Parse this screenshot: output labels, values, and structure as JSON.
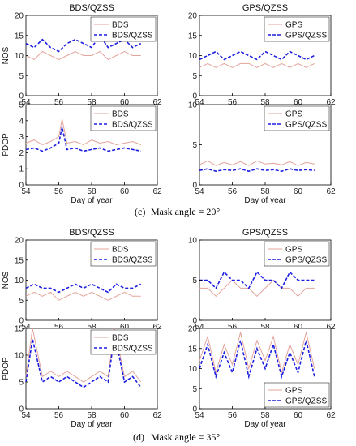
{
  "figure": {
    "caption_c_label": "(c)",
    "caption_c_text": "Mask angle = 20°",
    "caption_d_label": "(d)",
    "caption_d_text": "Mask angle = 35°"
  },
  "colors": {
    "single": "#e3a49b",
    "combined": "#1d1fe0"
  },
  "chart_data": [
    {
      "id": "c-nos-bds",
      "type": "line",
      "title": "BDS/QZSS",
      "xlabel": "",
      "ylabel": "NOS",
      "xlim": [
        54,
        62
      ],
      "ylim": [
        0,
        20
      ],
      "xticks": [
        54,
        56,
        58,
        60,
        62
      ],
      "yticks": [
        0,
        5,
        10,
        15,
        20
      ],
      "legend": [
        "BDS",
        "BDS/QZSS"
      ],
      "legend_position": "top-right",
      "series": [
        {
          "name": "BDS",
          "style": "single",
          "x": [
            54.0,
            54.5,
            55.0,
            55.5,
            56.0,
            56.5,
            57.0,
            57.5,
            58.0,
            58.5,
            59.0,
            59.5,
            60.0,
            60.5,
            61.0
          ],
          "y": [
            10,
            9,
            11,
            10,
            9,
            10,
            11,
            10,
            10,
            11,
            9,
            10,
            11,
            10,
            10
          ]
        },
        {
          "name": "BDS/QZSS",
          "style": "combined",
          "x": [
            54.0,
            54.5,
            55.0,
            55.5,
            56.0,
            56.5,
            57.0,
            57.5,
            58.0,
            58.5,
            59.0,
            59.5,
            60.0,
            60.5,
            61.0
          ],
          "y": [
            13,
            12,
            14,
            12,
            11,
            13,
            14,
            13,
            12,
            15,
            12,
            13,
            14,
            12,
            13
          ]
        }
      ]
    },
    {
      "id": "c-nos-gps",
      "type": "line",
      "title": "GPS/QZSS",
      "xlabel": "",
      "ylabel": "",
      "xlim": [
        54,
        62
      ],
      "ylim": [
        0,
        20
      ],
      "xticks": [
        54,
        56,
        58,
        60,
        62
      ],
      "yticks": [
        0,
        5,
        10,
        15,
        20
      ],
      "legend": [
        "GPS",
        "GPS/QZSS"
      ],
      "legend_position": "top-right",
      "series": [
        {
          "name": "GPS",
          "style": "single",
          "x": [
            54.0,
            54.5,
            55.0,
            55.5,
            56.0,
            56.5,
            57.0,
            57.5,
            58.0,
            58.5,
            59.0,
            59.5,
            60.0,
            60.5,
            61.0
          ],
          "y": [
            7,
            8,
            7,
            8,
            7,
            8,
            8,
            7,
            8,
            7,
            8,
            7,
            8,
            7,
            8
          ]
        },
        {
          "name": "GPS/QZSS",
          "style": "combined",
          "x": [
            54.0,
            54.5,
            55.0,
            55.5,
            56.0,
            56.5,
            57.0,
            57.5,
            58.0,
            58.5,
            59.0,
            59.5,
            60.0,
            60.5,
            61.0
          ],
          "y": [
            9,
            10,
            11,
            9,
            10,
            11,
            10,
            9,
            11,
            10,
            9,
            11,
            10,
            9,
            10
          ]
        }
      ]
    },
    {
      "id": "c-pdop-bds",
      "type": "line",
      "title": "",
      "xlabel": "Day of year",
      "ylabel": "PDOP",
      "xlim": [
        54,
        62
      ],
      "ylim": [
        0,
        5
      ],
      "xticks": [
        54,
        56,
        58,
        60,
        62
      ],
      "yticks": [
        0,
        1,
        2,
        3,
        4,
        5
      ],
      "legend": [
        "BDS",
        "BDS/QZSS"
      ],
      "legend_position": "top-right",
      "series": [
        {
          "name": "BDS",
          "style": "single",
          "x": [
            54.0,
            54.5,
            55.0,
            55.5,
            56.0,
            56.2,
            56.5,
            57.0,
            57.5,
            58.0,
            58.5,
            59.0,
            59.5,
            60.0,
            60.5,
            61.0
          ],
          "y": [
            2.6,
            2.8,
            2.5,
            2.7,
            3.0,
            4.1,
            2.6,
            2.7,
            2.5,
            2.8,
            2.6,
            2.7,
            2.5,
            2.6,
            2.7,
            2.5
          ]
        },
        {
          "name": "BDS/QZSS",
          "style": "combined",
          "x": [
            54.0,
            54.5,
            55.0,
            55.5,
            56.0,
            56.2,
            56.5,
            57.0,
            57.5,
            58.0,
            58.5,
            59.0,
            59.5,
            60.0,
            60.5,
            61.0
          ],
          "y": [
            2.2,
            2.3,
            2.1,
            2.3,
            2.6,
            3.6,
            2.2,
            2.3,
            2.1,
            2.2,
            2.3,
            2.1,
            2.2,
            2.3,
            2.2,
            2.1
          ]
        }
      ]
    },
    {
      "id": "c-pdop-gps",
      "type": "line",
      "title": "",
      "xlabel": "Day of year",
      "ylabel": "",
      "xlim": [
        54,
        62
      ],
      "ylim": [
        0,
        10
      ],
      "xticks": [
        54,
        56,
        58,
        60,
        62
      ],
      "yticks": [
        0,
        5,
        10
      ],
      "legend": [
        "GPS",
        "GPS/QZSS"
      ],
      "legend_position": "top-right",
      "series": [
        {
          "name": "GPS",
          "style": "single",
          "x": [
            54.0,
            54.5,
            55.0,
            55.5,
            56.0,
            56.5,
            57.0,
            57.5,
            58.0,
            58.5,
            59.0,
            59.5,
            60.0,
            60.5,
            61.0
          ],
          "y": [
            2.5,
            3.0,
            2.4,
            2.8,
            2.5,
            2.9,
            2.4,
            3.0,
            2.6,
            2.7,
            2.5,
            2.9,
            2.4,
            2.8,
            2.6
          ]
        },
        {
          "name": "GPS/QZSS",
          "style": "combined",
          "x": [
            54.0,
            54.5,
            55.0,
            55.5,
            56.0,
            56.5,
            57.0,
            57.5,
            58.0,
            58.5,
            59.0,
            59.5,
            60.0,
            60.5,
            61.0
          ],
          "y": [
            1.8,
            2.0,
            1.7,
            1.9,
            1.8,
            2.0,
            1.7,
            2.0,
            1.8,
            1.9,
            1.7,
            2.0,
            1.8,
            1.9,
            1.8
          ]
        }
      ]
    },
    {
      "id": "d-nos-bds",
      "type": "line",
      "title": "BDS/QZSS",
      "xlabel": "",
      "ylabel": "NOS",
      "xlim": [
        54,
        62
      ],
      "ylim": [
        0,
        20
      ],
      "xticks": [
        54,
        56,
        58,
        60,
        62
      ],
      "yticks": [
        0,
        5,
        10,
        15,
        20
      ],
      "legend": [
        "BDS",
        "BDS/QZSS"
      ],
      "legend_position": "top-right",
      "series": [
        {
          "name": "BDS",
          "style": "single",
          "x": [
            54.0,
            54.5,
            55.0,
            55.5,
            56.0,
            56.5,
            57.0,
            57.5,
            58.0,
            58.5,
            59.0,
            59.5,
            60.0,
            60.5,
            61.0
          ],
          "y": [
            6,
            7,
            6,
            7,
            5,
            6,
            7,
            6,
            7,
            6,
            5,
            6,
            7,
            6,
            6
          ]
        },
        {
          "name": "BDS/QZSS",
          "style": "combined",
          "x": [
            54.0,
            54.5,
            55.0,
            55.5,
            56.0,
            56.5,
            57.0,
            57.5,
            58.0,
            58.5,
            59.0,
            59.5,
            60.0,
            60.5,
            61.0
          ],
          "y": [
            8,
            9,
            8,
            8,
            7,
            8,
            9,
            8,
            9,
            8,
            7,
            9,
            8,
            8,
            9
          ]
        }
      ]
    },
    {
      "id": "d-nos-gps",
      "type": "line",
      "title": "GPS/QZSS",
      "xlabel": "",
      "ylabel": "",
      "xlim": [
        54,
        62
      ],
      "ylim": [
        0,
        10
      ],
      "xticks": [
        54,
        56,
        58,
        60,
        62
      ],
      "yticks": [
        0,
        5,
        10
      ],
      "legend": [
        "GPS",
        "GPS/QZSS"
      ],
      "legend_position": "top-right",
      "series": [
        {
          "name": "GPS",
          "style": "single",
          "x": [
            54.0,
            54.5,
            55.0,
            55.5,
            56.0,
            56.5,
            57.0,
            57.5,
            58.0,
            58.5,
            59.0,
            59.5,
            60.0,
            60.5,
            61.0
          ],
          "y": [
            4,
            4,
            3,
            4,
            5,
            4,
            4,
            3,
            4,
            5,
            4,
            4,
            3,
            4,
            4
          ]
        },
        {
          "name": "GPS/QZSS",
          "style": "combined",
          "x": [
            54.0,
            54.5,
            55.0,
            55.5,
            56.0,
            56.5,
            57.0,
            57.5,
            58.0,
            58.5,
            59.0,
            59.5,
            60.0,
            60.5,
            61.0
          ],
          "y": [
            5,
            5,
            4,
            6,
            5,
            5,
            4,
            6,
            5,
            5,
            4,
            6,
            5,
            5,
            5
          ]
        }
      ]
    },
    {
      "id": "d-pdop-bds",
      "type": "line",
      "title": "",
      "xlabel": "Day of year",
      "ylabel": "PDOP",
      "xlim": [
        54,
        62
      ],
      "ylim": [
        0,
        15
      ],
      "xticks": [
        54,
        56,
        58,
        60,
        62
      ],
      "yticks": [
        0,
        5,
        10,
        15
      ],
      "legend": [
        "BDS",
        "BDS/QZSS"
      ],
      "legend_position": "top-right",
      "series": [
        {
          "name": "BDS",
          "style": "single",
          "x": [
            54.0,
            54.4,
            55.0,
            55.5,
            56.0,
            56.5,
            57.0,
            57.5,
            58.0,
            58.5,
            59.0,
            59.4,
            60.0,
            60.5,
            61.0
          ],
          "y": [
            6,
            15,
            6,
            7,
            6,
            7,
            6,
            5,
            6,
            7,
            6,
            15,
            6,
            7,
            5
          ]
        },
        {
          "name": "BDS/QZSS",
          "style": "combined",
          "x": [
            54.0,
            54.4,
            55.0,
            55.5,
            56.0,
            56.5,
            57.0,
            57.5,
            58.0,
            58.5,
            59.0,
            59.4,
            60.0,
            60.5,
            61.0
          ],
          "y": [
            5,
            13,
            5,
            6,
            5,
            6,
            5,
            4,
            5,
            6,
            5,
            14,
            5,
            6,
            4
          ]
        }
      ]
    },
    {
      "id": "d-pdop-gps",
      "type": "line",
      "title": "",
      "xlabel": "Day of year",
      "ylabel": "",
      "xlim": [
        54,
        62
      ],
      "ylim": [
        0,
        20
      ],
      "xticks": [
        54,
        56,
        58,
        60,
        62
      ],
      "yticks": [
        0,
        5,
        10,
        15,
        20
      ],
      "legend": [
        "GPS",
        "GPS/QZSS"
      ],
      "legend_position": "bottom-right",
      "series": [
        {
          "name": "GPS",
          "style": "single",
          "x": [
            54.0,
            54.5,
            55.0,
            55.5,
            56.0,
            56.5,
            57.0,
            57.5,
            58.0,
            58.5,
            59.0,
            59.5,
            60.0,
            60.5,
            61.0
          ],
          "y": [
            12,
            18,
            9,
            16,
            11,
            19,
            10,
            17,
            12,
            18,
            9,
            16,
            11,
            19,
            10
          ]
        },
        {
          "name": "GPS/QZSS",
          "style": "combined",
          "x": [
            54.0,
            54.5,
            55.0,
            55.5,
            56.0,
            56.5,
            57.0,
            57.5,
            58.0,
            58.5,
            59.0,
            59.5,
            60.0,
            60.5,
            61.0
          ],
          "y": [
            10,
            16,
            8,
            14,
            9,
            17,
            8,
            15,
            10,
            16,
            8,
            14,
            9,
            17,
            8
          ]
        }
      ]
    }
  ]
}
